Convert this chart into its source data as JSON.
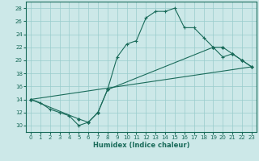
{
  "xlabel": "Humidex (Indice chaleur)",
  "background_color": "#cce8e8",
  "grid_color": "#99cccc",
  "line_color": "#1a6b5a",
  "xlim": [
    -0.5,
    23.5
  ],
  "ylim": [
    9,
    29
  ],
  "xticks": [
    0,
    1,
    2,
    3,
    4,
    5,
    6,
    7,
    8,
    9,
    10,
    11,
    12,
    13,
    14,
    15,
    16,
    17,
    18,
    19,
    20,
    21,
    22,
    23
  ],
  "yticks": [
    10,
    12,
    14,
    16,
    18,
    20,
    22,
    24,
    26,
    28
  ],
  "line1_x": [
    0,
    1,
    2,
    3,
    4,
    5,
    6,
    7,
    8,
    9,
    10,
    11,
    12,
    13,
    14,
    15,
    16,
    17,
    18,
    19,
    20,
    21,
    22,
    23
  ],
  "line1_y": [
    14.0,
    13.5,
    12.5,
    12.0,
    11.5,
    10.0,
    10.5,
    12.0,
    15.5,
    20.5,
    22.5,
    23.0,
    26.5,
    27.5,
    27.5,
    28.0,
    25.0,
    25.0,
    23.5,
    22.0,
    20.5,
    21.0,
    20.0,
    19.0
  ],
  "line2_x": [
    0,
    5,
    6,
    7,
    8,
    19,
    20,
    21,
    22,
    23
  ],
  "line2_y": [
    14.0,
    11.0,
    10.5,
    12.0,
    15.5,
    22.0,
    22.0,
    21.0,
    20.0,
    19.0
  ],
  "line3_x": [
    0,
    23
  ],
  "line3_y": [
    14.0,
    19.0
  ]
}
